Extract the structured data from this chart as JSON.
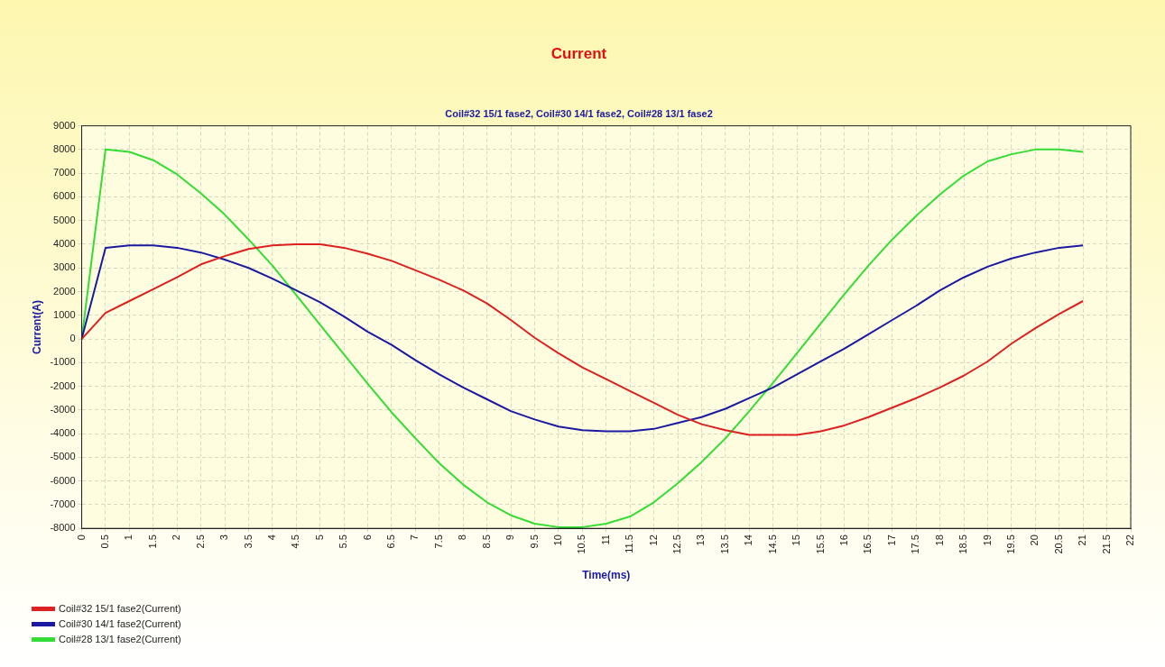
{
  "chart_data": {
    "type": "line",
    "title": "Current",
    "subtitle": "Coil#32 15/1 fase2, Coil#30 14/1 fase2, Coil#28 13/1 fase2",
    "xlabel": "Time(ms)",
    "ylabel": "Current(A)",
    "x": [
      0,
      0.5,
      1,
      1.5,
      2,
      2.5,
      3,
      3.5,
      4,
      4.5,
      5,
      5.5,
      6,
      6.5,
      7,
      7.5,
      8,
      8.5,
      9,
      9.5,
      10,
      10.5,
      11,
      11.5,
      12,
      12.5,
      13,
      13.5,
      14,
      14.5,
      15,
      15.5,
      16,
      16.5,
      17,
      17.5,
      18,
      18.5,
      19,
      19.5,
      20,
      20.5,
      21
    ],
    "series": [
      {
        "name": "Coil#32 15/1 fase2(Current)",
        "color": "#dd2020",
        "values": [
          0,
          1100,
          1600,
          2100,
          2600,
          3150,
          3500,
          3800,
          3950,
          4000,
          4000,
          3850,
          3600,
          3300,
          2900,
          2500,
          2050,
          1500,
          800,
          50,
          -600,
          -1200,
          -1700,
          -2200,
          -2700,
          -3200,
          -3600,
          -3850,
          -4050,
          -4050,
          -4050,
          -3900,
          -3650,
          -3300,
          -2900,
          -2500,
          -2050,
          -1550,
          -950,
          -200,
          450,
          1050,
          1600
        ]
      },
      {
        "name": "Coil#30 14/1 fase2(Current)",
        "color": "#1a1aa0",
        "values": [
          0,
          3850,
          3950,
          3950,
          3850,
          3650,
          3350,
          3000,
          2550,
          2050,
          1550,
          950,
          300,
          -250,
          -900,
          -1500,
          -2050,
          -2550,
          -3050,
          -3400,
          -3700,
          -3850,
          -3900,
          -3900,
          -3800,
          -3550,
          -3300,
          -2950,
          -2500,
          -2050,
          -1500,
          -950,
          -400,
          200,
          800,
          1400,
          2050,
          2600,
          3050,
          3400,
          3650,
          3850,
          3950
        ]
      },
      {
        "name": "Coil#28 13/1 fase2(Current)",
        "color": "#33dd33",
        "values": [
          0,
          8000,
          7900,
          7550,
          6950,
          6150,
          5250,
          4200,
          3100,
          1850,
          600,
          -650,
          -1900,
          -3100,
          -4200,
          -5250,
          -6150,
          -6900,
          -7450,
          -7800,
          -7950,
          -7950,
          -7800,
          -7500,
          -6900,
          -6100,
          -5200,
          -4200,
          -3050,
          -1850,
          -600,
          650,
          1900,
          3100,
          4200,
          5200,
          6100,
          6900,
          7500,
          7800,
          8000,
          8000,
          7900
        ]
      }
    ],
    "xlim": [
      0,
      22
    ],
    "xticks": [
      0,
      0.5,
      1,
      1.5,
      2,
      2.5,
      3,
      3.5,
      4,
      4.5,
      5,
      5.5,
      6,
      6.5,
      7,
      7.5,
      8,
      8.5,
      9,
      9.5,
      10,
      10.5,
      11,
      11.5,
      12,
      12.5,
      13,
      13.5,
      14,
      14.5,
      15,
      15.5,
      16,
      16.5,
      17,
      17.5,
      18,
      18.5,
      19,
      19.5,
      20,
      20.5,
      21,
      21.5,
      22
    ],
    "ylim": [
      -8000,
      9000
    ],
    "yticks": [
      -8000,
      -7000,
      -6000,
      -5000,
      -4000,
      -3000,
      -2000,
      -1000,
      0,
      1000,
      2000,
      3000,
      4000,
      5000,
      6000,
      7000,
      8000,
      9000
    ],
    "grid": true,
    "legend": "bottom left",
    "marker": "none",
    "line_style": "solid"
  }
}
